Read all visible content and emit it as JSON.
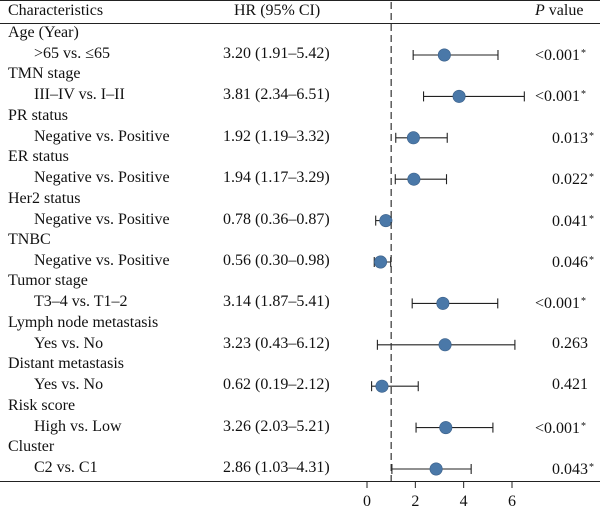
{
  "header": {
    "characteristics": "Characteristics",
    "hr_ci": "HR (95% CI)",
    "p_italic": "P",
    "p_rest": "value"
  },
  "chart_data": {
    "type": "forest",
    "xlim": [
      -0.5,
      7
    ],
    "x_ticks": [
      "0",
      "2",
      "4",
      "6"
    ],
    "reference_line": 1,
    "marker_color": "#4a78a8",
    "rows": [
      {
        "group": "Age (Year)",
        "comparison": ">65 vs. ≤65",
        "hr_text": "3.20 (1.91–5.42)",
        "hr": 3.2,
        "lo": 1.91,
        "hi": 5.42,
        "p": "<0.001",
        "sig": "*"
      },
      {
        "group": "TMN stage",
        "comparison": "III–IV vs. I–II",
        "hr_text": "3.81 (2.34–6.51)",
        "hr": 3.81,
        "lo": 2.34,
        "hi": 6.51,
        "p": "<0.001",
        "sig": "*"
      },
      {
        "group": "PR status",
        "comparison": "Negative vs. Positive",
        "hr_text": "1.92 (1.19–3.32)",
        "hr": 1.92,
        "lo": 1.19,
        "hi": 3.32,
        "p": "0.013",
        "sig": "*"
      },
      {
        "group": "ER status",
        "comparison": "Negative vs. Positive",
        "hr_text": "1.94 (1.17–3.29)",
        "hr": 1.94,
        "lo": 1.17,
        "hi": 3.29,
        "p": "0.022",
        "sig": "*"
      },
      {
        "group": "Her2 status",
        "comparison": "Negative vs. Positive",
        "hr_text": "0.78 (0.36–0.87)",
        "hr": 0.78,
        "lo": 0.36,
        "hi": 0.87,
        "p": "0.041",
        "sig": "*"
      },
      {
        "group": "TNBC",
        "comparison": "Negative vs. Positive",
        "hr_text": "0.56 (0.30–0.98)",
        "hr": 0.56,
        "lo": 0.3,
        "hi": 0.98,
        "p": "0.046",
        "sig": "*"
      },
      {
        "group": "Tumor stage",
        "comparison": "T3–4 vs. T1–2",
        "hr_text": "3.14 (1.87–5.41)",
        "hr": 3.14,
        "lo": 1.87,
        "hi": 5.41,
        "p": "<0.001",
        "sig": "*"
      },
      {
        "group": "Lymph node metastasis",
        "comparison": "Yes vs. No",
        "hr_text": "3.23 (0.43–6.12)",
        "hr": 3.23,
        "lo": 0.43,
        "hi": 6.12,
        "p": "0.263",
        "sig": ""
      },
      {
        "group": "Distant metastasis",
        "comparison": "Yes vs. No",
        "hr_text": "0.62 (0.19–2.12)",
        "hr": 0.62,
        "lo": 0.19,
        "hi": 2.12,
        "p": "0.421",
        "sig": ""
      },
      {
        "group": "Risk score",
        "comparison": "High vs. Low",
        "hr_text": "3.26 (2.03–5.21)",
        "hr": 3.26,
        "lo": 2.03,
        "hi": 5.21,
        "p": "<0.001",
        "sig": "*"
      },
      {
        "group": "Cluster",
        "comparison": "C2 vs. C1",
        "hr_text": "2.86 (1.03–4.31)",
        "hr": 2.86,
        "lo": 1.03,
        "hi": 4.31,
        "p": "0.043",
        "sig": "*"
      }
    ]
  }
}
